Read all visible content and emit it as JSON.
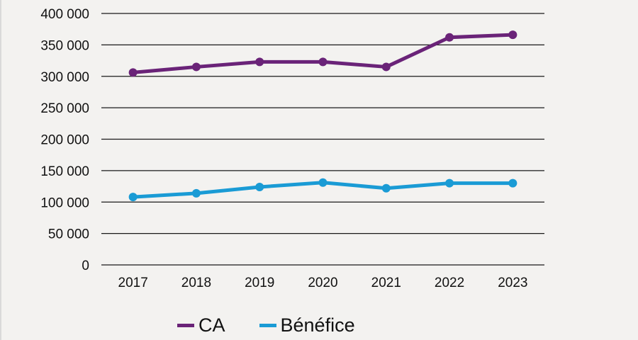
{
  "chart_data": {
    "type": "line",
    "title": "",
    "xlabel": "",
    "ylabel": "",
    "categories": [
      "2017",
      "2018",
      "2019",
      "2020",
      "2021",
      "2022",
      "2023"
    ],
    "ylim": [
      0,
      400000
    ],
    "yticks": [
      0,
      50000,
      100000,
      150000,
      200000,
      250000,
      300000,
      350000,
      400000
    ],
    "ytick_labels": [
      "0",
      "50 000",
      "100 000",
      "150 000",
      "200 000",
      "250 000",
      "300 000",
      "350 000",
      "400 000"
    ],
    "grid": "horizontal",
    "legend_position": "bottom",
    "series": [
      {
        "name": "CA",
        "color": "#6a2378",
        "values": [
          306000,
          315000,
          323000,
          323000,
          315000,
          362000,
          366000
        ]
      },
      {
        "name": "Bénéfice",
        "color": "#1a9bd5",
        "values": [
          108000,
          114000,
          124000,
          131000,
          122000,
          130000,
          130000
        ]
      }
    ]
  },
  "legend": [
    {
      "label": "CA",
      "color": "#6a2378"
    },
    {
      "label": "Bénéfice",
      "color": "#1a9bd5"
    }
  ]
}
